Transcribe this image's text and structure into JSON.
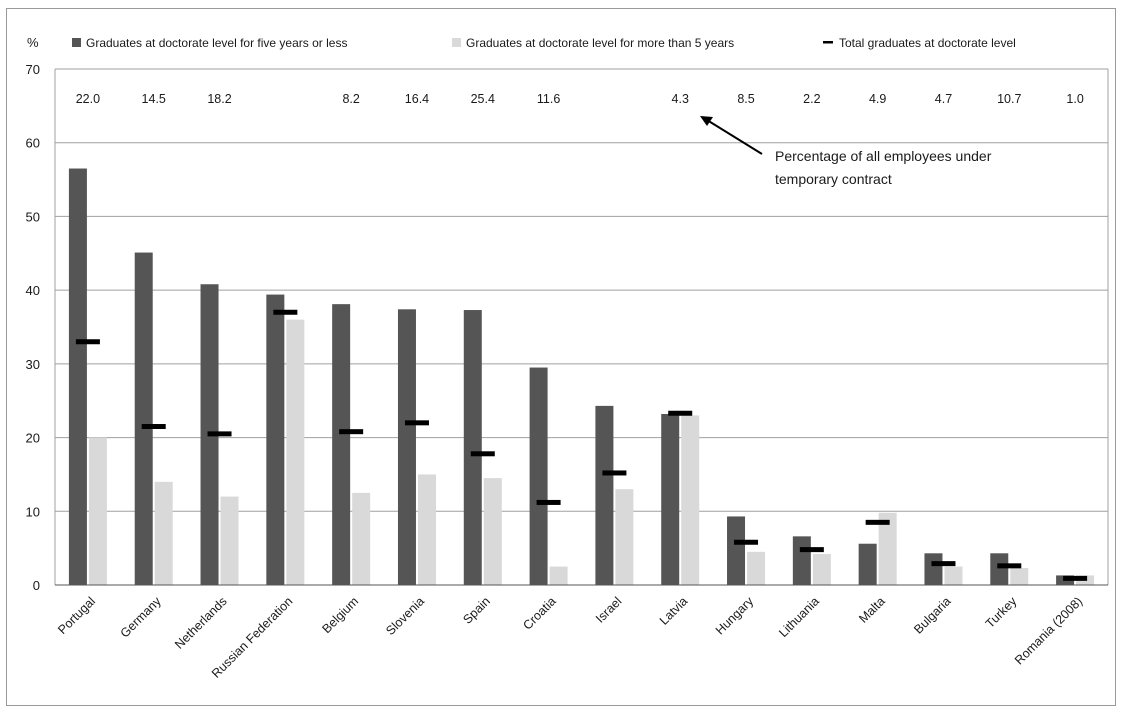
{
  "chart_data": {
    "type": "bar",
    "ylabel": "%",
    "ylim": [
      0,
      70
    ],
    "yticks": [
      0,
      10,
      20,
      30,
      40,
      50,
      60,
      70
    ],
    "grid": true,
    "legend_position": "top",
    "categories": [
      "Portugal",
      "Germany",
      "Netherlands",
      "Russian Federation",
      "Belgium",
      "Slovenia",
      "Spain",
      "Croatia",
      "Israel",
      "Latvia",
      "Hungary",
      "Lithuania",
      "Malta",
      "Bulgaria",
      "Turkey",
      "Romania (2008)"
    ],
    "series": [
      {
        "name": "Graduates at doctorate level for five years or less",
        "kind": "bar",
        "color": "#555555",
        "values": [
          56.5,
          45.1,
          40.8,
          39.4,
          38.1,
          37.4,
          37.3,
          29.5,
          24.3,
          23.2,
          9.3,
          6.6,
          5.6,
          4.3,
          4.3,
          1.3
        ]
      },
      {
        "name": "Graduates at doctorate level for more than 5 years",
        "kind": "bar",
        "color": "#d9d9d9",
        "values": [
          20.0,
          14.0,
          12.0,
          36.0,
          12.5,
          15.0,
          14.5,
          2.5,
          13.0,
          23.0,
          4.5,
          4.2,
          9.8,
          2.5,
          2.3,
          1.3
        ]
      },
      {
        "name": "Total graduates at doctorate level",
        "kind": "marker",
        "color": "#000000",
        "values": [
          33.0,
          21.5,
          20.5,
          37.0,
          20.8,
          22.0,
          17.8,
          11.2,
          15.2,
          23.3,
          5.8,
          4.8,
          8.5,
          2.9,
          2.6,
          0.9
        ]
      }
    ],
    "top_labels": [
      "22.0",
      "14.5",
      "18.2",
      "",
      "8.2",
      "16.4",
      "25.4",
      "11.6",
      "",
      "4.3",
      "8.5",
      "2.2",
      "4.9",
      "4.7",
      "10.7",
      "1.0"
    ],
    "annotation": {
      "line1": "Percentage of all employees under",
      "line2": "temporary contract"
    }
  }
}
